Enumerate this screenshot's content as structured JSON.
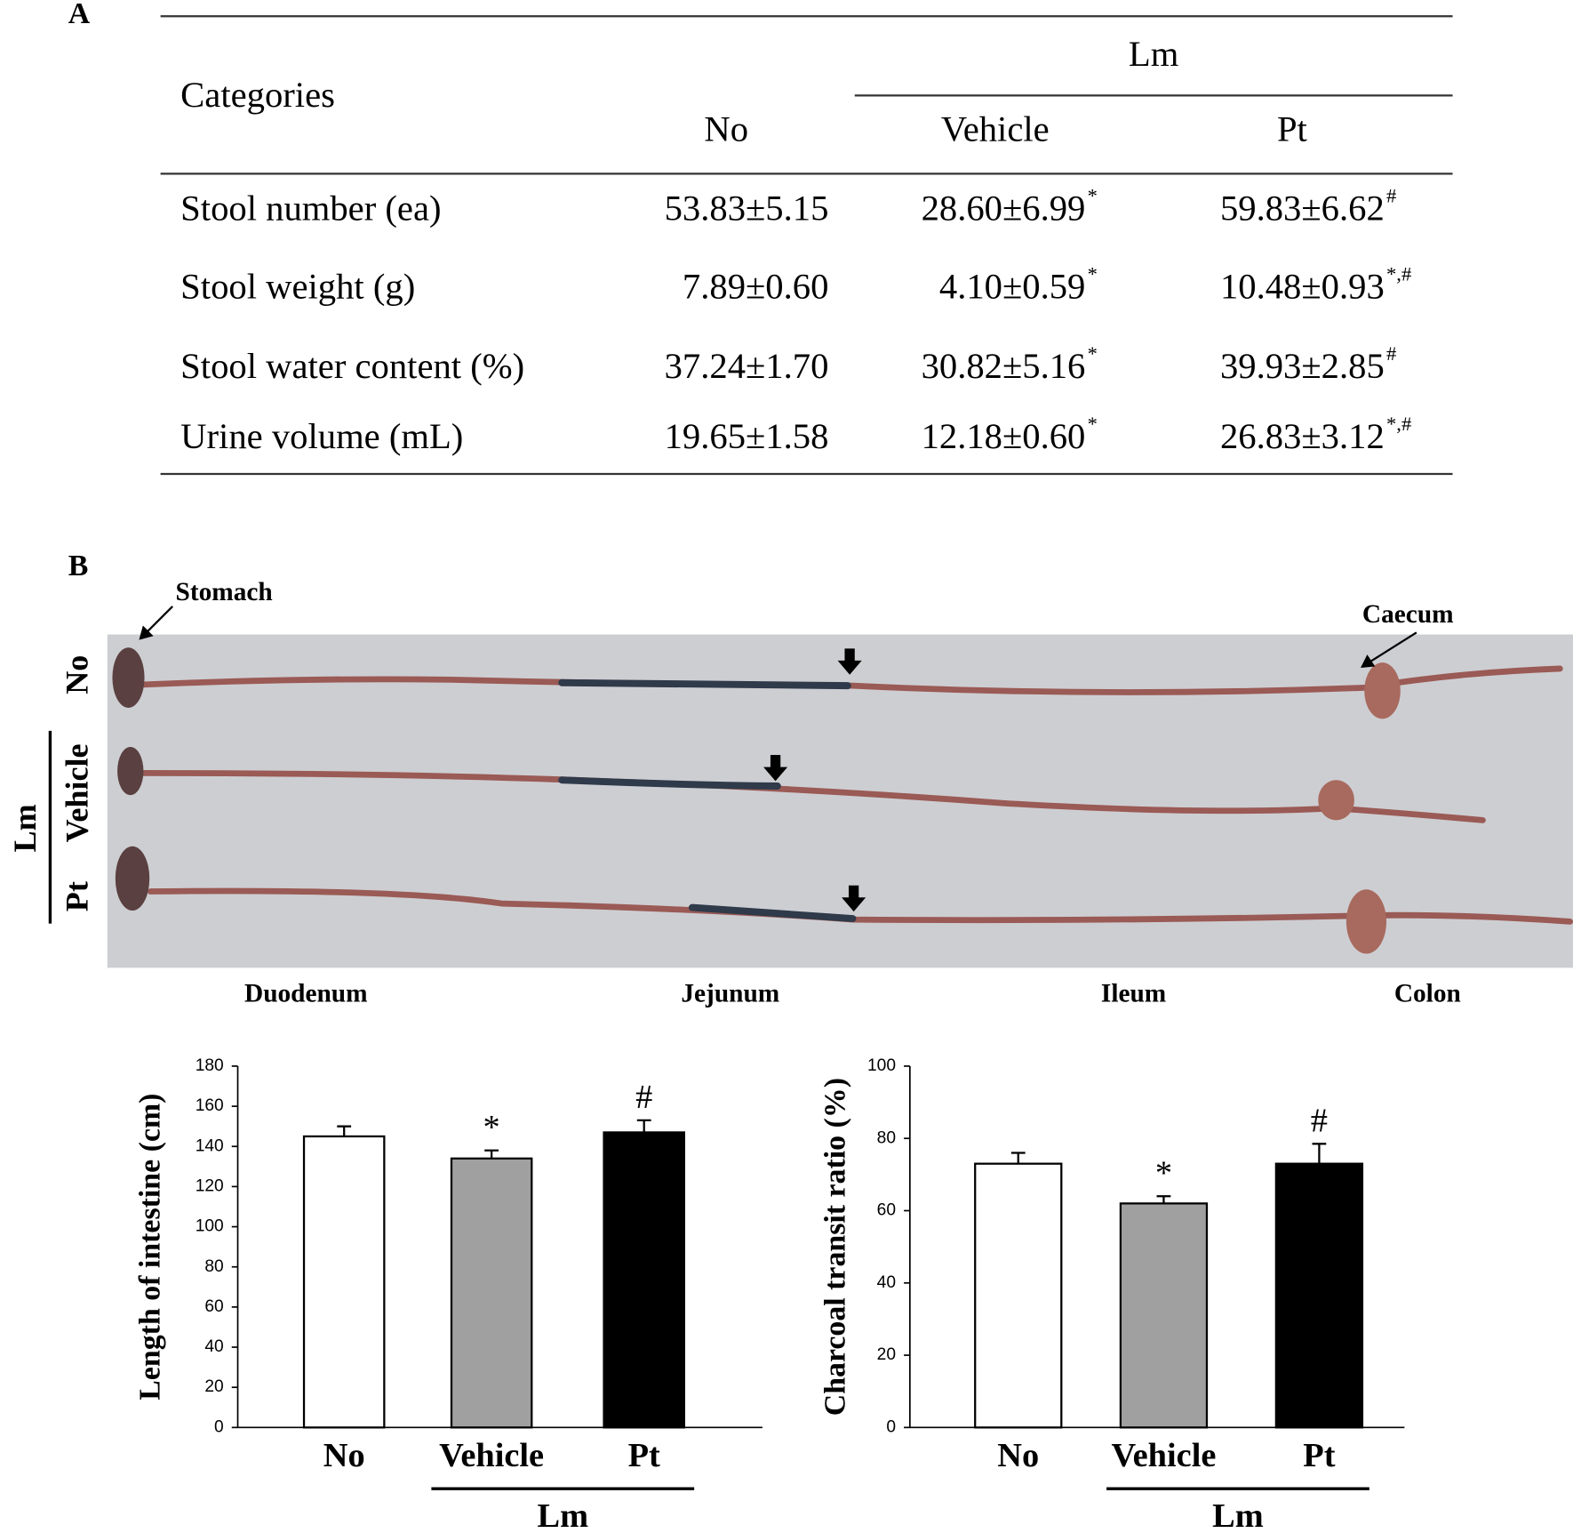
{
  "panels": {
    "a": "A",
    "b": "B"
  },
  "table": {
    "header": "Categories",
    "group": "Lm",
    "columns": [
      "No",
      "Vehicle",
      "Pt"
    ],
    "rows": [
      {
        "label": "Stool number (ea)",
        "cells": [
          {
            "text": "53.83±5.15"
          },
          {
            "text": "28.60±6.99",
            "sup": "*"
          },
          {
            "text": "59.83±6.62",
            "sup": "#"
          }
        ]
      },
      {
        "label": "Stool weight (g)",
        "cells": [
          {
            "text": "7.89±0.60"
          },
          {
            "text": "4.10±0.59",
            "sup": "*"
          },
          {
            "text": "10.48±0.93",
            "sup": "*,#"
          }
        ]
      },
      {
        "label": "Stool water content (%)",
        "cells": [
          {
            "text": "37.24±1.70"
          },
          {
            "text": "30.82±5.16",
            "sup": "*"
          },
          {
            "text": "39.93±2.85",
            "sup": "#"
          }
        ]
      },
      {
        "label": "Urine volume (mL)",
        "cells": [
          {
            "text": "19.65±1.58"
          },
          {
            "text": "12.18±0.60",
            "sup": "*"
          },
          {
            "text": "26.83±3.12",
            "sup": "*,#"
          }
        ]
      }
    ]
  },
  "photo": {
    "callouts": [
      "Stomach",
      "Caecum"
    ],
    "rows": [
      "No",
      "Vehicle",
      "Pt"
    ],
    "group": "Lm",
    "segments": [
      "Duodenum",
      "Jejunum",
      "Ileum",
      "Colon"
    ]
  },
  "chart_data": [
    {
      "type": "bar",
      "ylabel": "Length of intestine (cm)",
      "categories": [
        "No",
        "Vehicle",
        "Pt"
      ],
      "group_label": "Lm",
      "values": [
        145,
        134,
        147
      ],
      "errors": [
        5,
        4,
        6
      ],
      "marks": [
        null,
        "*",
        "#"
      ],
      "colors": [
        "#ffffff",
        "#a0a0a0",
        "#000000"
      ],
      "ylim": [
        0,
        180
      ],
      "yticks": [
        0,
        20,
        40,
        60,
        80,
        100,
        120,
        140,
        160,
        180
      ]
    },
    {
      "type": "bar",
      "ylabel": "Charcoal transit ratio  (%)",
      "categories": [
        "No",
        "Vehicle",
        "Pt"
      ],
      "group_label": "Lm",
      "values": [
        73,
        62,
        73
      ],
      "errors": [
        3,
        2,
        5.5
      ],
      "marks": [
        null,
        "*",
        "#"
      ],
      "colors": [
        "#ffffff",
        "#a0a0a0",
        "#000000"
      ],
      "ylim": [
        0,
        100
      ],
      "yticks": [
        0,
        20,
        40,
        60,
        80,
        100
      ]
    }
  ]
}
